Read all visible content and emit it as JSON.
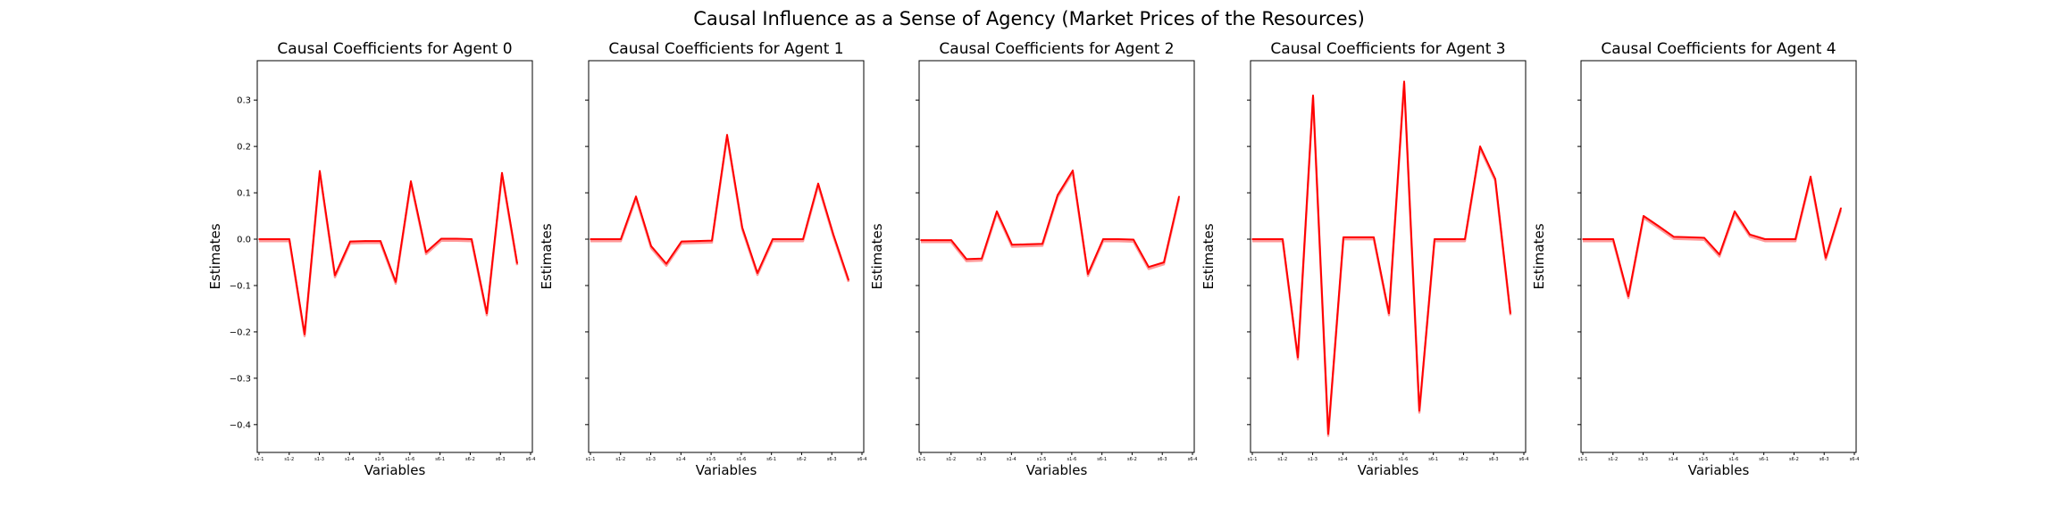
{
  "figure": {
    "title": "Causal Influence as a Sense of Agency (Market Prices of the Resources)"
  },
  "chart_data": [
    {
      "type": "line",
      "title": "Causal Coefficients for Agent 0",
      "xlabel": "Variables",
      "ylabel": "Estimates",
      "ylim": [
        -0.46,
        0.385
      ],
      "yticks": [
        0.3,
        0.2,
        0.1,
        0.0,
        -0.1,
        -0.2,
        -0.3,
        -0.4
      ],
      "ytick_labels": [
        "0.3",
        "0.2",
        "0.1",
        "0.0",
        "−0.1",
        "−0.2",
        "−0.3",
        "−0.4"
      ],
      "xtick_labels": [
        "s1-1",
        "s1-2",
        "s1-3",
        "s1-4",
        "s1-5",
        "s1-6",
        "s6-1",
        "s6-2",
        "s6-3",
        "s6-4"
      ],
      "series": [
        {
          "values": [
            0.0,
            0.0,
            0.0,
            -0.205,
            0.147,
            -0.078,
            -0.005,
            -0.004,
            -0.004,
            -0.092,
            0.125,
            -0.028,
            0.001,
            0.001,
            0.0,
            -0.16,
            0.143,
            -0.052
          ]
        }
      ]
    },
    {
      "type": "line",
      "title": "Causal Coefficients for Agent 1",
      "xlabel": "Variables",
      "ylabel": "Estimates",
      "ylim": [
        -0.46,
        0.385
      ],
      "yticks": [
        0.3,
        0.2,
        0.1,
        0.0,
        -0.1,
        -0.2,
        -0.3,
        -0.4
      ],
      "xtick_labels": [
        "s1-1",
        "s1-2",
        "s1-3",
        "s1-4",
        "s1-5",
        "s1-6",
        "s6-1",
        "s6-2",
        "s6-3",
        "s6-4"
      ],
      "series": [
        {
          "values": [
            0.0,
            0.0,
            0.0,
            0.092,
            -0.015,
            -0.053,
            -0.005,
            -0.004,
            -0.003,
            0.225,
            0.025,
            -0.073,
            0.0,
            0.0,
            0.0,
            0.12,
            0.01,
            -0.088
          ]
        }
      ]
    },
    {
      "type": "line",
      "title": "Causal Coefficients for Agent 2",
      "xlabel": "Variables",
      "ylabel": "Estimates",
      "ylim": [
        -0.46,
        0.385
      ],
      "yticks": [
        0.3,
        0.2,
        0.1,
        0.0,
        -0.1,
        -0.2,
        -0.3,
        -0.4
      ],
      "xtick_labels": [
        "s1-1",
        "s1-2",
        "s1-3",
        "s1-4",
        "s1-5",
        "s1-6",
        "s6-1",
        "s6-2",
        "s6-3",
        "s6-4"
      ],
      "series": [
        {
          "values": [
            -0.002,
            -0.002,
            -0.002,
            -0.043,
            -0.042,
            0.06,
            -0.012,
            -0.011,
            -0.01,
            0.095,
            0.148,
            -0.075,
            0.0,
            0.0,
            -0.001,
            -0.06,
            -0.05,
            0.092
          ]
        }
      ]
    },
    {
      "type": "line",
      "title": "Causal Coefficients for Agent 3",
      "xlabel": "Variables",
      "ylabel": "Estimates",
      "ylim": [
        -0.46,
        0.385
      ],
      "yticks": [
        0.3,
        0.2,
        0.1,
        0.0,
        -0.1,
        -0.2,
        -0.3,
        -0.4
      ],
      "xtick_labels": [
        "s1-1",
        "s1-2",
        "s1-3",
        "s1-4",
        "s1-5",
        "s1-6",
        "s6-1",
        "s6-2",
        "s6-3",
        "s6-4"
      ],
      "series": [
        {
          "values": [
            0.0,
            0.0,
            0.0,
            -0.255,
            0.31,
            -0.42,
            0.004,
            0.004,
            0.004,
            -0.16,
            0.34,
            -0.37,
            0.0,
            0.0,
            0.0,
            0.2,
            0.13,
            -0.16
          ]
        }
      ]
    },
    {
      "type": "line",
      "title": "Causal Coefficients for Agent 4",
      "xlabel": "Variables",
      "ylabel": "Estimates",
      "ylim": [
        -0.46,
        0.385
      ],
      "yticks": [
        0.3,
        0.2,
        0.1,
        0.0,
        -0.1,
        -0.2,
        -0.3,
        -0.4
      ],
      "xtick_labels": [
        "s1-1",
        "s1-2",
        "s1-3",
        "s1-4",
        "s1-5",
        "s1-6",
        "s6-1",
        "s6-2",
        "s6-3",
        "s6-4"
      ],
      "series": [
        {
          "values": [
            0.0,
            0.0,
            0.0,
            -0.123,
            0.05,
            0.028,
            0.005,
            0.004,
            0.003,
            -0.033,
            0.06,
            0.01,
            0.0,
            0.0,
            0.0,
            0.135,
            -0.04,
            0.067
          ]
        }
      ]
    }
  ],
  "colors": {
    "line": "#ff0000",
    "band": "#ff9999"
  }
}
